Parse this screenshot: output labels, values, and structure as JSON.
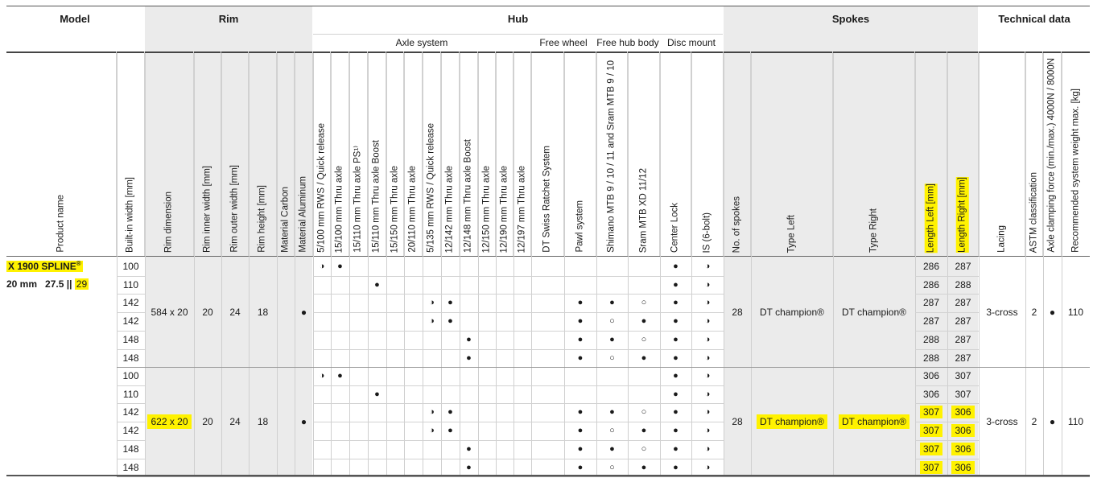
{
  "groups": {
    "model": "Model",
    "rim": "Rim",
    "hub": "Hub",
    "spokes": "Spokes",
    "tech": "Technical data"
  },
  "subgroups": {
    "axle": "Axle system",
    "freewheel": "Free wheel",
    "freehub": "Free hub body",
    "disc": "Disc mount"
  },
  "columns": {
    "product": "Product name",
    "builtin": "Built-in width [mm]",
    "rimdim": "Rim dimension",
    "inner": "Rim inner width [mm]",
    "outer": "Rim outer width [mm]",
    "height": "Rim height [mm]",
    "carbon": "Material Carbon",
    "alu": "Material Aluminum",
    "a1": "5/100 mm RWS / Quick release",
    "a2": "15/100 mm Thru axle",
    "a3": "15/110 mm Thru axle PS¹⁾",
    "a4": "15/110 mm Thru axle Boost",
    "a5": "15/150 mm Thru axle",
    "a6": "20/110 mm Thru axle",
    "a7": "5/135 mm RWS / Quick release",
    "a8": "12/142 mm Thru axle",
    "a9": "12/148 mm Thru axle Boost",
    "a10": "12/150 mm Thru axle",
    "a11": "12/190 mm Thru axle",
    "a12": "12/197 mm Thru axle",
    "ratchet": "DT Swiss Ratchet System",
    "pawl": "Pawl system",
    "shimano": "Shimano MTB 9 / 10 / 11 and Sram MTB 9 / 10",
    "xd": "Sram MTB XD 11/12",
    "center": "Center Lock",
    "is": "IS (6-bolt)",
    "nspokes": "No. of spokes",
    "typeleft": "Type Left",
    "typeright": "Type Right",
    "lenleft": "Length Left [mm]",
    "lenright": "Length Right [mm]",
    "lacing": "Lacing",
    "astm": "ASTM classification",
    "clamp": "Axle clamping force (min./max.) 4000N / 8000N",
    "weight": "Recommended system weight max. [kg]"
  },
  "product": {
    "name": "X 1900 SPLINE",
    "reg": "®",
    "size_line_prefix": "20 mm   27.5 ||",
    "size_29": "29"
  },
  "blocks": [
    {
      "rim_dimension": "584 x 20",
      "inner": "20",
      "outer": "24",
      "height": "18",
      "aluminum": "●",
      "spokes_no": "28",
      "type_left": "DT champion®",
      "type_right": "DT champion®",
      "lacing": "3-cross",
      "astm": "2",
      "clamp": "●",
      "weight": "110",
      "rows": [
        {
          "width": "100",
          "len_left": "286",
          "len_right": "287"
        },
        {
          "width": "110",
          "len_left": "286",
          "len_right": "288"
        },
        {
          "width": "142",
          "len_left": "287",
          "len_right": "287"
        },
        {
          "width": "142",
          "len_left": "287",
          "len_right": "287"
        },
        {
          "width": "148",
          "len_left": "288",
          "len_right": "287"
        },
        {
          "width": "148",
          "len_left": "288",
          "len_right": "287"
        }
      ]
    },
    {
      "rim_dimension": "622 x 20",
      "inner": "20",
      "outer": "24",
      "height": "18",
      "aluminum": "●",
      "spokes_no": "28",
      "type_left": "DT champion®",
      "type_right": "DT champion®",
      "lacing": "3-cross",
      "astm": "2",
      "clamp": "●",
      "weight": "110",
      "rows": [
        {
          "width": "100",
          "len_left": "306",
          "len_right": "307"
        },
        {
          "width": "110",
          "len_left": "306",
          "len_right": "307"
        },
        {
          "width": "142",
          "len_left": "307",
          "len_right": "306"
        },
        {
          "width": "142",
          "len_left": "307",
          "len_right": "306"
        },
        {
          "width": "148",
          "len_left": "307",
          "len_right": "306"
        },
        {
          "width": "148",
          "len_left": "307",
          "len_right": "306"
        }
      ]
    }
  ],
  "marks": {
    "full": "●",
    "half": "◑",
    "open": "○",
    "rows": [
      [
        [
          "a1",
          "◑"
        ],
        [
          "a2",
          "●"
        ],
        [
          "center",
          "●"
        ],
        [
          "is",
          "◑"
        ]
      ],
      [
        [
          "a4",
          "●"
        ],
        [
          "center",
          "●"
        ],
        [
          "is",
          "◑"
        ]
      ],
      [
        [
          "a7",
          "◑"
        ],
        [
          "a8",
          "●"
        ],
        [
          "pawl",
          "●"
        ],
        [
          "shimano",
          "●"
        ],
        [
          "xd",
          "○"
        ],
        [
          "center",
          "●"
        ],
        [
          "is",
          "◑"
        ]
      ],
      [
        [
          "a7",
          "◑"
        ],
        [
          "a8",
          "●"
        ],
        [
          "pawl",
          "●"
        ],
        [
          "shimano",
          "○"
        ],
        [
          "xd",
          "●"
        ],
        [
          "center",
          "●"
        ],
        [
          "is",
          "◑"
        ]
      ],
      [
        [
          "a9",
          "●"
        ],
        [
          "pawl",
          "●"
        ],
        [
          "shimano",
          "●"
        ],
        [
          "xd",
          "○"
        ],
        [
          "center",
          "●"
        ],
        [
          "is",
          "◑"
        ]
      ],
      [
        [
          "a9",
          "●"
        ],
        [
          "pawl",
          "●"
        ],
        [
          "shimano",
          "○"
        ],
        [
          "xd",
          "●"
        ],
        [
          "center",
          "●"
        ],
        [
          "is",
          "◑"
        ]
      ]
    ]
  },
  "highlight_color": "#fff200"
}
